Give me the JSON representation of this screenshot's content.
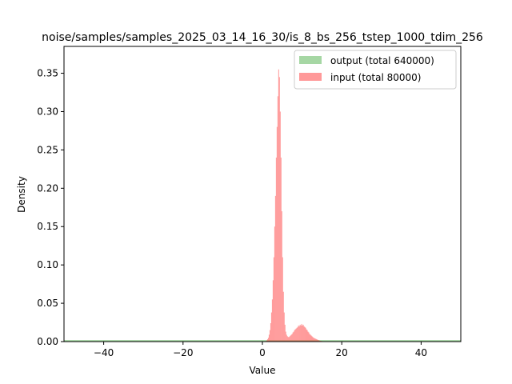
{
  "chart_data": {
    "type": "histogram",
    "title": "noise/samples/samples_2025_03_14_16_30/is_8_bs_256_tstep_1000_tdim_256",
    "xlabel": "Value",
    "ylabel": "Density",
    "xlim": [
      -50,
      50
    ],
    "ylim": [
      0,
      0.385
    ],
    "x_ticks": [
      -40,
      -20,
      0,
      20,
      40
    ],
    "x_tick_labels": [
      "−40",
      "−20",
      "0",
      "20",
      "40"
    ],
    "y_ticks": [
      0.0,
      0.05,
      0.1,
      0.15,
      0.2,
      0.25,
      0.3,
      0.35
    ],
    "y_tick_labels": [
      "0.00",
      "0.05",
      "0.10",
      "0.15",
      "0.20",
      "0.25",
      "0.30",
      "0.35"
    ],
    "grid": false,
    "legend_position": "top-right",
    "series": [
      {
        "name": "output (total 640000)",
        "color": "#4daf4a",
        "alpha": 0.5,
        "bin_edges_range": [
          -50,
          50
        ],
        "density": 0.002
      },
      {
        "name": "input (total 80000)",
        "color": "#ff3333",
        "alpha": 0.5,
        "bins": [
          [
            0.6,
            0.0004
          ],
          [
            0.8,
            0.0008
          ],
          [
            1.0,
            0.0015
          ],
          [
            1.2,
            0.003
          ],
          [
            1.4,
            0.005
          ],
          [
            1.6,
            0.009
          ],
          [
            1.8,
            0.015
          ],
          [
            2.0,
            0.024
          ],
          [
            2.2,
            0.038
          ],
          [
            2.4,
            0.055
          ],
          [
            2.6,
            0.08
          ],
          [
            2.8,
            0.11
          ],
          [
            3.0,
            0.15
          ],
          [
            3.2,
            0.19
          ],
          [
            3.4,
            0.24
          ],
          [
            3.6,
            0.28
          ],
          [
            3.8,
            0.32
          ],
          [
            4.0,
            0.355
          ],
          [
            4.2,
            0.345
          ],
          [
            4.4,
            0.3
          ],
          [
            4.6,
            0.24
          ],
          [
            4.8,
            0.17
          ],
          [
            5.0,
            0.11
          ],
          [
            5.2,
            0.065
          ],
          [
            5.4,
            0.038
          ],
          [
            5.6,
            0.022
          ],
          [
            5.8,
            0.013
          ],
          [
            6.0,
            0.009
          ],
          [
            6.2,
            0.007
          ],
          [
            6.4,
            0.006
          ],
          [
            6.6,
            0.006
          ],
          [
            6.8,
            0.007
          ],
          [
            7.0,
            0.008
          ],
          [
            7.2,
            0.009
          ],
          [
            7.4,
            0.01
          ],
          [
            7.6,
            0.012
          ],
          [
            7.8,
            0.013
          ],
          [
            8.0,
            0.015
          ],
          [
            8.2,
            0.016
          ],
          [
            8.4,
            0.017
          ],
          [
            8.6,
            0.018
          ],
          [
            8.8,
            0.019
          ],
          [
            9.0,
            0.021
          ],
          [
            9.2,
            0.02
          ],
          [
            9.4,
            0.022
          ],
          [
            9.6,
            0.021
          ],
          [
            9.8,
            0.023
          ],
          [
            10.0,
            0.021
          ],
          [
            10.2,
            0.022
          ],
          [
            10.4,
            0.02
          ],
          [
            10.6,
            0.019
          ],
          [
            10.8,
            0.018
          ],
          [
            11.0,
            0.016
          ],
          [
            11.2,
            0.015
          ],
          [
            11.4,
            0.013
          ],
          [
            11.6,
            0.012
          ],
          [
            11.8,
            0.01
          ],
          [
            12.0,
            0.009
          ],
          [
            12.2,
            0.008
          ],
          [
            12.4,
            0.007
          ],
          [
            12.6,
            0.006
          ],
          [
            12.8,
            0.005
          ],
          [
            13.0,
            0.0045
          ],
          [
            13.2,
            0.004
          ],
          [
            13.4,
            0.0035
          ],
          [
            13.6,
            0.003
          ],
          [
            13.8,
            0.0025
          ],
          [
            14.0,
            0.002
          ],
          [
            14.2,
            0.0016
          ],
          [
            14.4,
            0.0012
          ],
          [
            14.6,
            0.001
          ],
          [
            14.8,
            0.0008
          ],
          [
            15.0,
            0.0006
          ],
          [
            15.2,
            0.0004
          ],
          [
            15.4,
            0.0003
          ]
        ]
      }
    ]
  }
}
